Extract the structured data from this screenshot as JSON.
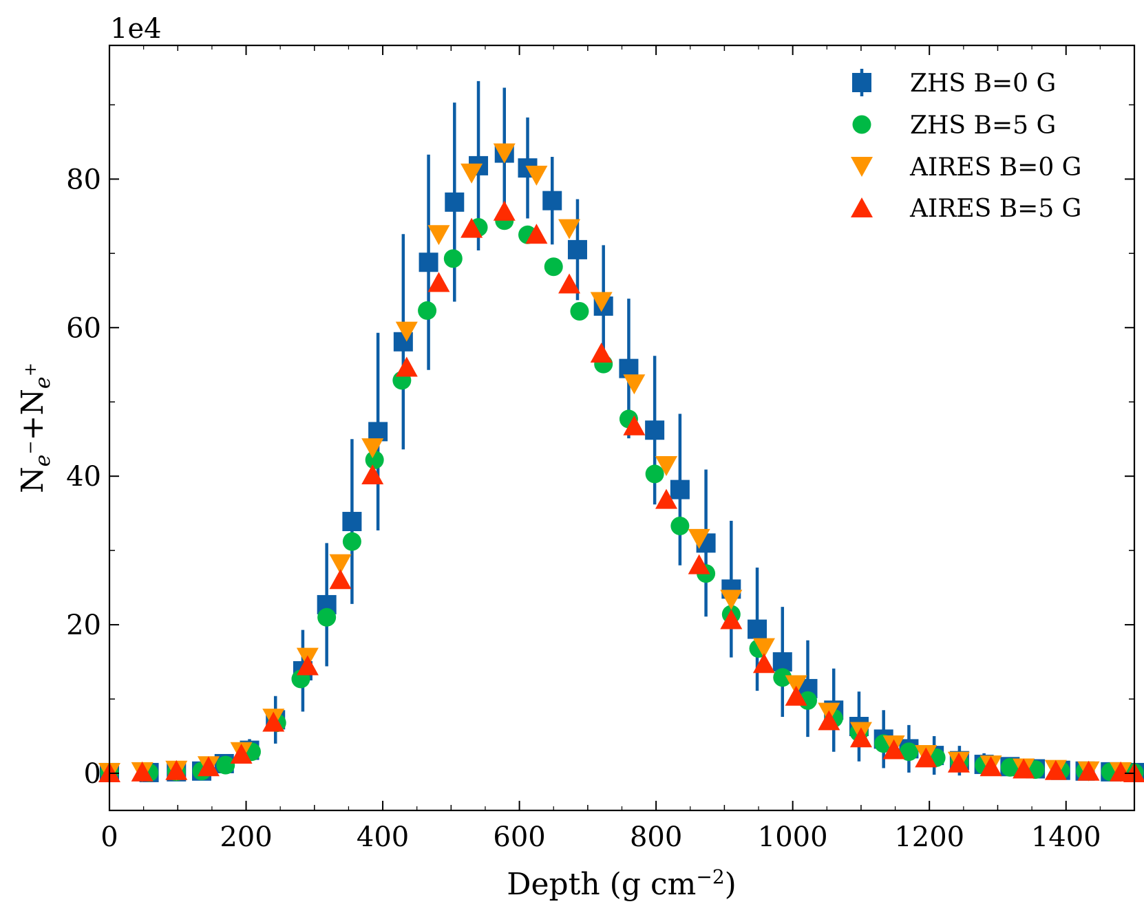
{
  "chart_data": {
    "type": "scatter",
    "title": "",
    "xlabel": "Depth (g cm",
    "xlabel_sup": "−2",
    "xlabel_close": ")",
    "ylabel_n1": "N",
    "ylabel_sub1": "e",
    "ylabel_sup1": "−",
    "ylabel_plus": "+N",
    "ylabel_sub2": "e",
    "ylabel_sup2": "+",
    "offset_text": "1e4",
    "xlim": [
      0,
      1500
    ],
    "ylim": [
      -5,
      98
    ],
    "xticks": [
      0,
      200,
      400,
      600,
      800,
      1000,
      1200,
      1400
    ],
    "xtick_labels": [
      "0",
      "200",
      "400",
      "600",
      "800",
      "1000",
      "1200",
      "1400"
    ],
    "yticks": [
      0,
      20,
      40,
      60,
      80
    ],
    "ytick_labels": [
      "0",
      "20",
      "40",
      "60",
      "80"
    ],
    "legend_position": "top-right",
    "series": [
      {
        "name": "ZHS B=0 G",
        "marker": "square",
        "color": "#0C5DA5",
        "x": [
          0,
          58,
          98,
          135,
          168,
          205,
          243,
          283,
          318,
          355,
          393,
          430,
          467,
          505,
          540,
          578,
          612,
          648,
          685,
          723,
          760,
          798,
          835,
          873,
          910,
          948,
          985,
          1022,
          1060,
          1097,
          1133,
          1170,
          1207,
          1244,
          1280,
          1318,
          1355,
          1392,
          1428,
          1465,
          1500
        ],
        "y": [
          0.1,
          0.1,
          0.2,
          0.3,
          1.3,
          3.1,
          7.2,
          13.8,
          22.7,
          33.9,
          46.0,
          58.1,
          68.8,
          76.9,
          81.8,
          83.5,
          81.5,
          77.1,
          70.5,
          62.9,
          54.5,
          46.2,
          38.2,
          31.0,
          24.8,
          19.4,
          15.0,
          11.4,
          8.5,
          6.3,
          4.6,
          3.3,
          2.4,
          1.7,
          1.2,
          0.9,
          0.6,
          0.4,
          0.3,
          0.2,
          0.1
        ],
        "yerr": [
          0.1,
          0.1,
          0.2,
          0.3,
          0.5,
          1.5,
          3.2,
          5.5,
          8.3,
          11.1,
          13.3,
          14.5,
          14.5,
          13.4,
          11.4,
          8.8,
          6.8,
          5.9,
          6.8,
          8.2,
          9.4,
          10.0,
          10.2,
          9.9,
          9.2,
          8.3,
          7.4,
          6.5,
          5.6,
          4.7,
          3.9,
          3.2,
          2.6,
          2.0,
          1.5,
          1.2,
          0.9,
          0.6,
          0.4,
          0.3,
          0.2
        ]
      },
      {
        "name": "ZHS B=5 G",
        "marker": "circle",
        "color": "#00B945",
        "x": [
          0,
          58,
          98,
          135,
          170,
          208,
          245,
          280,
          318,
          355,
          388,
          428,
          465,
          503,
          540,
          578,
          612,
          650,
          688,
          723,
          760,
          798,
          835,
          873,
          910,
          950,
          985,
          1022,
          1060,
          1097,
          1133,
          1170,
          1210,
          1244,
          1280,
          1318,
          1355,
          1392,
          1428,
          1465,
          1500
        ],
        "y": [
          0.1,
          0.1,
          0.2,
          0.3,
          1.1,
          2.9,
          6.8,
          12.7,
          21.0,
          31.2,
          42.2,
          52.9,
          62.3,
          69.3,
          73.5,
          74.4,
          72.5,
          68.2,
          62.2,
          55.1,
          47.7,
          40.3,
          33.3,
          26.9,
          21.4,
          16.8,
          12.9,
          9.8,
          7.4,
          5.5,
          4.0,
          2.9,
          2.1,
          1.5,
          1.1,
          0.8,
          0.5,
          0.4,
          0.3,
          0.2,
          0.1
        ]
      },
      {
        "name": "AIRES B=0 G",
        "marker": "triangle-down",
        "color": "#FF9500",
        "x": [
          0,
          48,
          98,
          145,
          193,
          240,
          290,
          338,
          385,
          435,
          482,
          530,
          578,
          625,
          673,
          720,
          768,
          815,
          863,
          910,
          958,
          1005,
          1053,
          1100,
          1148,
          1195,
          1243,
          1290,
          1338,
          1385,
          1433,
          1480
        ],
        "y": [
          0.1,
          0.2,
          0.4,
          1.0,
          2.9,
          7.4,
          15.6,
          28.2,
          43.8,
          59.5,
          72.5,
          80.8,
          83.5,
          80.5,
          73.3,
          63.5,
          52.4,
          41.4,
          31.6,
          23.4,
          16.9,
          11.9,
          8.2,
          5.6,
          3.8,
          2.5,
          1.6,
          1.1,
          0.7,
          0.5,
          0.3,
          0.2
        ]
      },
      {
        "name": "AIRES B=5 G",
        "marker": "triangle-up",
        "color": "#FF2C00",
        "x": [
          0,
          48,
          98,
          145,
          193,
          240,
          290,
          338,
          385,
          435,
          482,
          530,
          578,
          625,
          673,
          720,
          768,
          815,
          863,
          910,
          958,
          1005,
          1053,
          1100,
          1148,
          1195,
          1243,
          1290,
          1338,
          1385,
          1433,
          1480,
          1500
        ],
        "y": [
          0.1,
          0.2,
          0.4,
          0.9,
          2.6,
          6.9,
          14.5,
          26.1,
          40.2,
          54.7,
          66.1,
          73.4,
          75.7,
          72.6,
          65.9,
          56.6,
          46.8,
          36.9,
          28.1,
          20.7,
          14.8,
          10.4,
          7.1,
          4.8,
          3.2,
          2.1,
          1.4,
          0.9,
          0.6,
          0.4,
          0.3,
          0.2,
          0.1
        ]
      }
    ]
  }
}
